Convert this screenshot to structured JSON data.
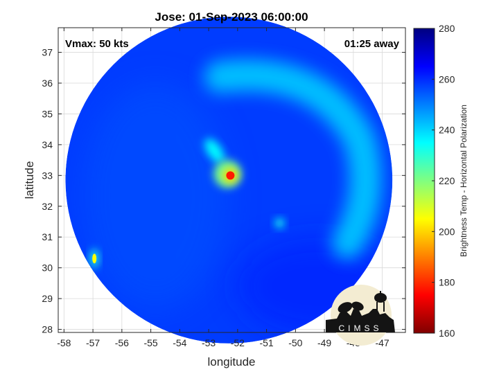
{
  "chart_data": {
    "type": "heatmap",
    "title": "Jose: 01-Sep-2023 06:00:00",
    "xlabel": "longitude",
    "ylabel": "latitude",
    "xlim": [
      -58.2,
      -46.2
    ],
    "ylim": [
      27.9,
      37.8
    ],
    "x_ticks": [
      -58,
      -57,
      -56,
      -55,
      -54,
      -53,
      -52,
      -51,
      -50,
      -49,
      -48,
      -47
    ],
    "y_ticks": [
      28,
      29,
      30,
      31,
      32,
      33,
      34,
      35,
      36,
      37
    ],
    "grid": true,
    "annotations": {
      "intensity": "Vmax: 50 kts",
      "time_offset": "01:25 away"
    },
    "colorbar": {
      "label": "Brightness Temp - Horizontal Polarization",
      "range": [
        160,
        280
      ],
      "ticks": [
        160,
        180,
        200,
        220,
        240,
        260,
        280
      ],
      "colormap": "jet"
    },
    "swath": {
      "center_lon": -52.3,
      "center_lat": 32.85,
      "radius_deg": 5.65,
      "background_value": 258
    },
    "features": [
      {
        "name": "storm core",
        "lon": -52.25,
        "lat": 33.0,
        "value": 178
      },
      {
        "name": "inner ring",
        "lon": -52.35,
        "lat": 33.05,
        "value": 222
      },
      {
        "name": "north band",
        "lon": -52.8,
        "lat": 33.8,
        "value": 235
      },
      {
        "name": "west edge",
        "lon": -56.95,
        "lat": 30.3,
        "value": 205
      },
      {
        "name": "east cell",
        "lon": -50.55,
        "lat": 31.45,
        "value": 233
      },
      {
        "name": "outer band",
        "lon": -49.3,
        "lat": 34.6,
        "value": 240
      }
    ]
  },
  "logo": {
    "text": "CIMSS"
  },
  "colors": {
    "background": "#ffffff",
    "grid": "#d9d9d9",
    "axis": "#262626"
  }
}
